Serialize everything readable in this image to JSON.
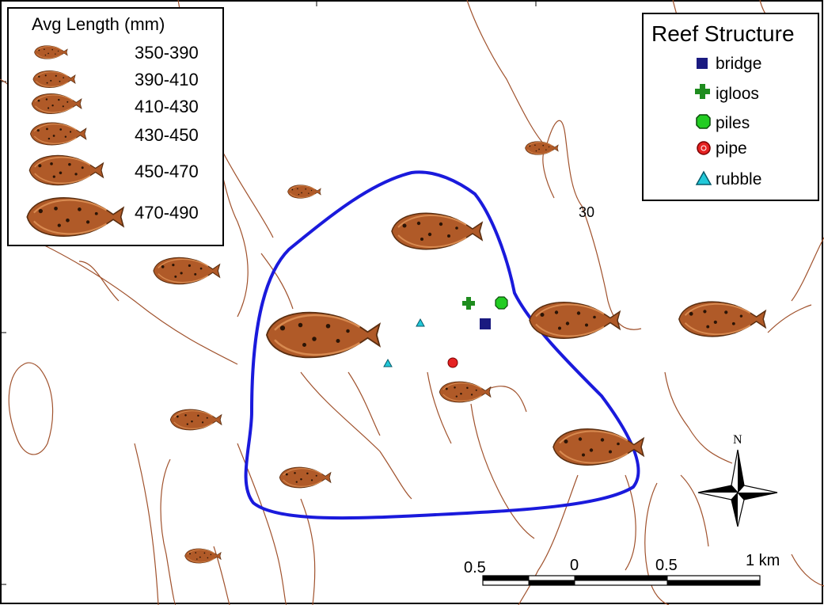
{
  "length_legend": {
    "title": "Avg Length (mm)",
    "classes": [
      {
        "label": "350-390"
      },
      {
        "label": "390-410"
      },
      {
        "label": "410-430"
      },
      {
        "label": "430-450"
      },
      {
        "label": "450-470"
      },
      {
        "label": "470-490"
      }
    ]
  },
  "structure_legend": {
    "title": "Reef Structure",
    "items": [
      {
        "label": "bridge",
        "symbol": "square",
        "color": "#1a1a80"
      },
      {
        "label": "igloos",
        "symbol": "cross",
        "color": "#1e8c1e"
      },
      {
        "label": "piles",
        "symbol": "octagon",
        "color": "#22cc22"
      },
      {
        "label": "pipe",
        "symbol": "circle",
        "color": "#e52222"
      },
      {
        "label": "rubble",
        "symbol": "triangle",
        "color": "#22c8d8"
      }
    ]
  },
  "contour_label": "30",
  "north_label": "N",
  "scale_bar": {
    "labels": [
      "0.5",
      "0",
      "0.5",
      "1 km"
    ]
  },
  "colors": {
    "contour": "#a0522d",
    "survey_boundary": "#1a1adc",
    "fish_body": "#b05a28",
    "fish_outline": "#5a2e10"
  }
}
